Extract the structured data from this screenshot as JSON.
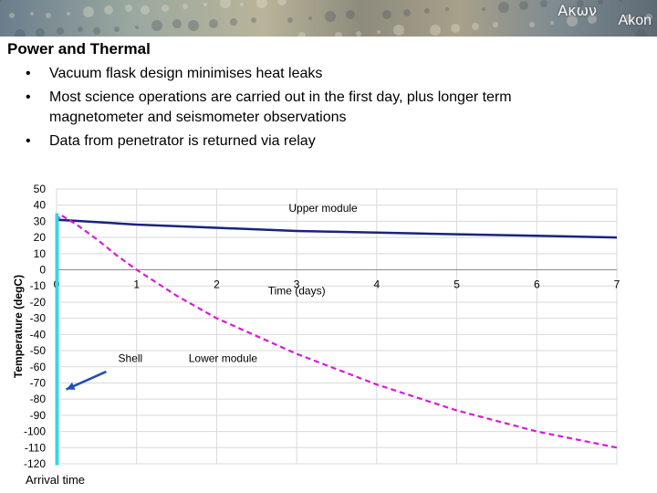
{
  "header": {
    "logo_greek": "Ακων",
    "logo_latin": "Akon"
  },
  "slide": {
    "title": "Power and Thermal",
    "bullets": [
      "Vacuum flask design minimises heat leaks",
      "Most science operations are carried out in the first day, plus longer term magnetometer and seismometer observations",
      "Data from penetrator is returned via relay"
    ]
  },
  "chart_data": {
    "type": "line",
    "xlabel": "Time (days)",
    "ylabel": "Temperature (degC)",
    "xlim": [
      0,
      7
    ],
    "ylim": [
      -120,
      50
    ],
    "xticks": [
      0,
      1,
      2,
      3,
      4,
      5,
      6,
      7
    ],
    "yticks": [
      50,
      40,
      30,
      20,
      10,
      0,
      -10,
      -20,
      -30,
      -40,
      -50,
      -60,
      -70,
      -80,
      -90,
      -100,
      -110,
      -120
    ],
    "grid": true,
    "series": [
      {
        "name": "Upper module",
        "color": "#1a237e",
        "style": "solid",
        "x": [
          0,
          0.5,
          1,
          1.5,
          2,
          3,
          4,
          5,
          6,
          7
        ],
        "y": [
          31,
          29.5,
          28,
          27,
          26,
          24,
          23,
          22,
          21,
          20
        ]
      },
      {
        "name": "Lower module",
        "color": "#d81bd8",
        "style": "dashed",
        "x": [
          0,
          0.05,
          0.25,
          0.5,
          0.75,
          1,
          1.5,
          2,
          3,
          4,
          5,
          6,
          7
        ],
        "y": [
          30,
          34,
          28,
          19,
          9,
          0,
          -16,
          -30,
          -52,
          -71,
          -87,
          -100,
          -110
        ]
      },
      {
        "name": "Shell",
        "color": "#33d6e8",
        "style": "solid",
        "x": [
          0,
          0,
          0.01,
          0.01
        ],
        "y": [
          35,
          -120,
          -120,
          35
        ]
      }
    ],
    "annotations": {
      "upper": "Upper module",
      "lower": "Lower module",
      "shell": "Shell",
      "arrival": "Arrival time"
    },
    "arrow_color": "#1f4fb4"
  }
}
